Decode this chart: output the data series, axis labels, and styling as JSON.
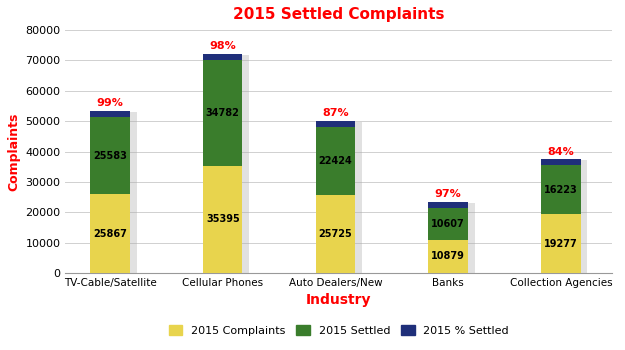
{
  "title": "2015 Settled Complaints",
  "title_color": "#FF0000",
  "categories": [
    "TV-Cable/Satellite",
    "Cellular Phones",
    "Auto Dealers/New",
    "Banks",
    "Collection Agencies"
  ],
  "complaints_2015": [
    25867,
    35395,
    25725,
    10879,
    19277
  ],
  "settled_2015": [
    25583,
    34782,
    22424,
    10607,
    16223
  ],
  "pct_bar_heights": [
    2000,
    2000,
    2000,
    2000,
    2000
  ],
  "pct_settled": [
    "99%",
    "98%",
    "87%",
    "97%",
    "84%"
  ],
  "bar_color_complaints": "#E8D44D",
  "bar_color_settled": "#3A7D2C",
  "bar_color_pct": "#1F2F7A",
  "xlabel": "Industry",
  "ylabel": "Complaints",
  "xlabel_color": "#FF0000",
  "ylabel_color": "#FF0000",
  "pct_color": "#FF0000",
  "ylim": [
    0,
    80000
  ],
  "yticks": [
    0,
    10000,
    20000,
    30000,
    40000,
    50000,
    60000,
    70000,
    80000
  ],
  "legend_labels": [
    "2015 Complaints",
    "2015 Settled",
    "2015 % Settled"
  ],
  "bar_width": 0.35,
  "background_color": "#FFFFFF",
  "grid_color": "#D0D0D0",
  "shadow_color": "#AAAAAA",
  "label_fontsize": 7,
  "pct_fontsize": 8,
  "title_fontsize": 11
}
